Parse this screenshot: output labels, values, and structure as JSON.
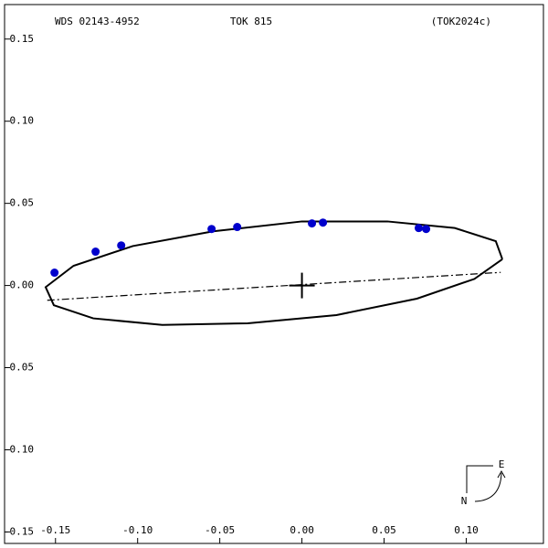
{
  "chart_data": {
    "type": "scatter",
    "labels": [
      "WDS 02143-4952",
      "TOK 815",
      "(TOK2024c)"
    ],
    "compass": {
      "east": "E",
      "north": "N"
    },
    "xlim": [
      -0.181,
      0.147
    ],
    "ylim": [
      -0.157,
      0.171
    ],
    "xticks": [
      {
        "value": -0.15,
        "label": "-0.15"
      },
      {
        "value": -0.1,
        "label": "-0.10"
      },
      {
        "value": -0.05,
        "label": "-0.05"
      },
      {
        "value": 0,
        "label": "0.00"
      },
      {
        "value": 0.05,
        "label": "0.05"
      },
      {
        "value": 0.1,
        "label": "0.10"
      }
    ],
    "yticks": [
      {
        "value": -0.15,
        "label": "-0.15"
      },
      {
        "value": -0.1,
        "label": "-0.10"
      },
      {
        "value": -0.05,
        "label": "-0.05"
      },
      {
        "value": 0,
        "label": "0.00"
      },
      {
        "value": 0.05,
        "label": "0.05"
      },
      {
        "value": 0.1,
        "label": "0.10"
      },
      {
        "value": 0.15,
        "label": "0.15"
      }
    ],
    "observations": {
      "color": "#0000cc",
      "x": [
        -0.1506,
        -0.1256,
        -0.11,
        -0.055,
        -0.0394,
        0.0061,
        0.0128,
        0.0711,
        0.0756
      ],
      "y": [
        0.0078,
        0.0206,
        0.0244,
        0.0344,
        0.0356,
        0.0378,
        0.0383,
        0.035,
        0.0344
      ]
    },
    "orbit": {
      "color": "#000000",
      "x": [
        0.122,
        0.118,
        0.093,
        0.052,
        0.0,
        -0.054,
        -0.103,
        -0.139,
        -0.156,
        -0.151,
        -0.127,
        -0.085,
        -0.033,
        0.021,
        0.07,
        0.105,
        0.122
      ],
      "y": [
        0.016,
        0.027,
        0.035,
        0.039,
        0.039,
        0.033,
        0.024,
        0.012,
        -0.001,
        -0.012,
        -0.02,
        -0.024,
        -0.023,
        -0.018,
        -0.008,
        0.004,
        0.016
      ]
    },
    "line_of_nodes": {
      "color": "#000000",
      "x": [
        -0.155,
        0.121
      ],
      "y": [
        -0.009,
        0.008
      ]
    },
    "center": {
      "x": 0,
      "y": 0
    }
  }
}
